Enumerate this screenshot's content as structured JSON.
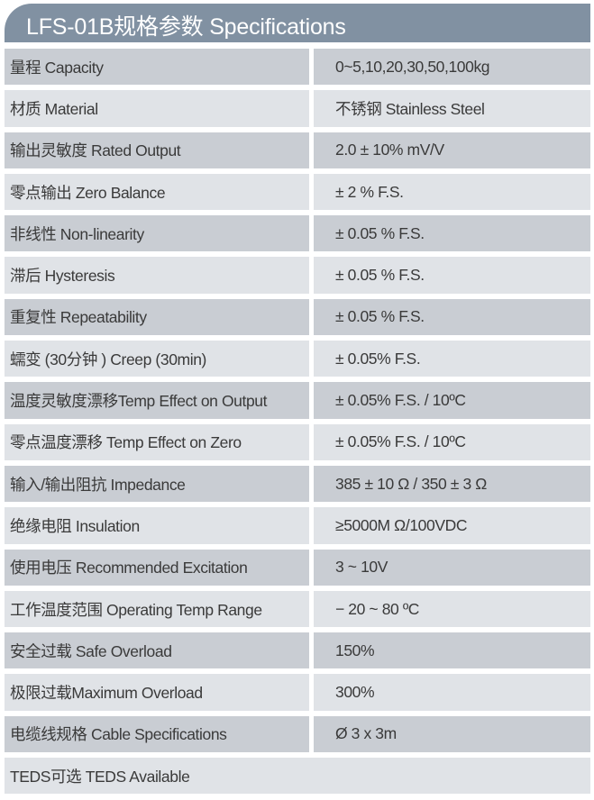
{
  "title": "LFS-01B规格参数 Specifications",
  "colors": {
    "header": "#8191a2",
    "row_dark": "#c9cdd3",
    "row_light": "#e0e3e7"
  },
  "rows": [
    {
      "label": "量程 Capacity",
      "value": "0~5,10,20,30,50,100kg"
    },
    {
      "label": "材质 Material",
      "value": "不锈钢 Stainless Steel"
    },
    {
      "label": "输出灵敏度 Rated Output",
      "value": "2.0 ± 10% mV/V"
    },
    {
      "label": "零点输出  Zero Balance",
      "value": "± 2 % F.S."
    },
    {
      "label": "非线性 Non-linearity",
      "value": "± 0.05 % F.S."
    },
    {
      "label": "滞后 Hysteresis",
      "value": "± 0.05 % F.S."
    },
    {
      "label": "重复性 Repeatability",
      "value": "± 0.05 % F.S."
    },
    {
      "label": "蠕变 (30分钟 ) Creep (30min)",
      "value": "± 0.05% F.S."
    },
    {
      "label": "温度灵敏度漂移Temp Effect on Output",
      "value": "± 0.05% F.S. / 10ºC"
    },
    {
      "label": "零点温度漂移 Temp Effect on Zero",
      "value": "± 0.05% F.S. / 10ºC"
    },
    {
      "label": "输入/输出阻抗 Impedance",
      "value": "385 ± 10 Ω / 350 ± 3 Ω"
    },
    {
      "label": "绝缘电阻  Insulation",
      "value": "≥5000M Ω/100VDC"
    },
    {
      "label": "使用电压 Recommended Excitation",
      "value": "3 ~ 10V"
    },
    {
      "label": "工作温度范围 Operating Temp  Range",
      "value": "− 20 ~ 80 ºC"
    },
    {
      "label": "安全过载 Safe Overload",
      "value": "150%"
    },
    {
      "label": "极限过载Maximum Overload",
      "value": "300%"
    },
    {
      "label": "电缆线规格 Cable Specifications",
      "value": "Ø 3 x 3m"
    },
    {
      "label": "TEDS可选 TEDS Available"
    }
  ]
}
